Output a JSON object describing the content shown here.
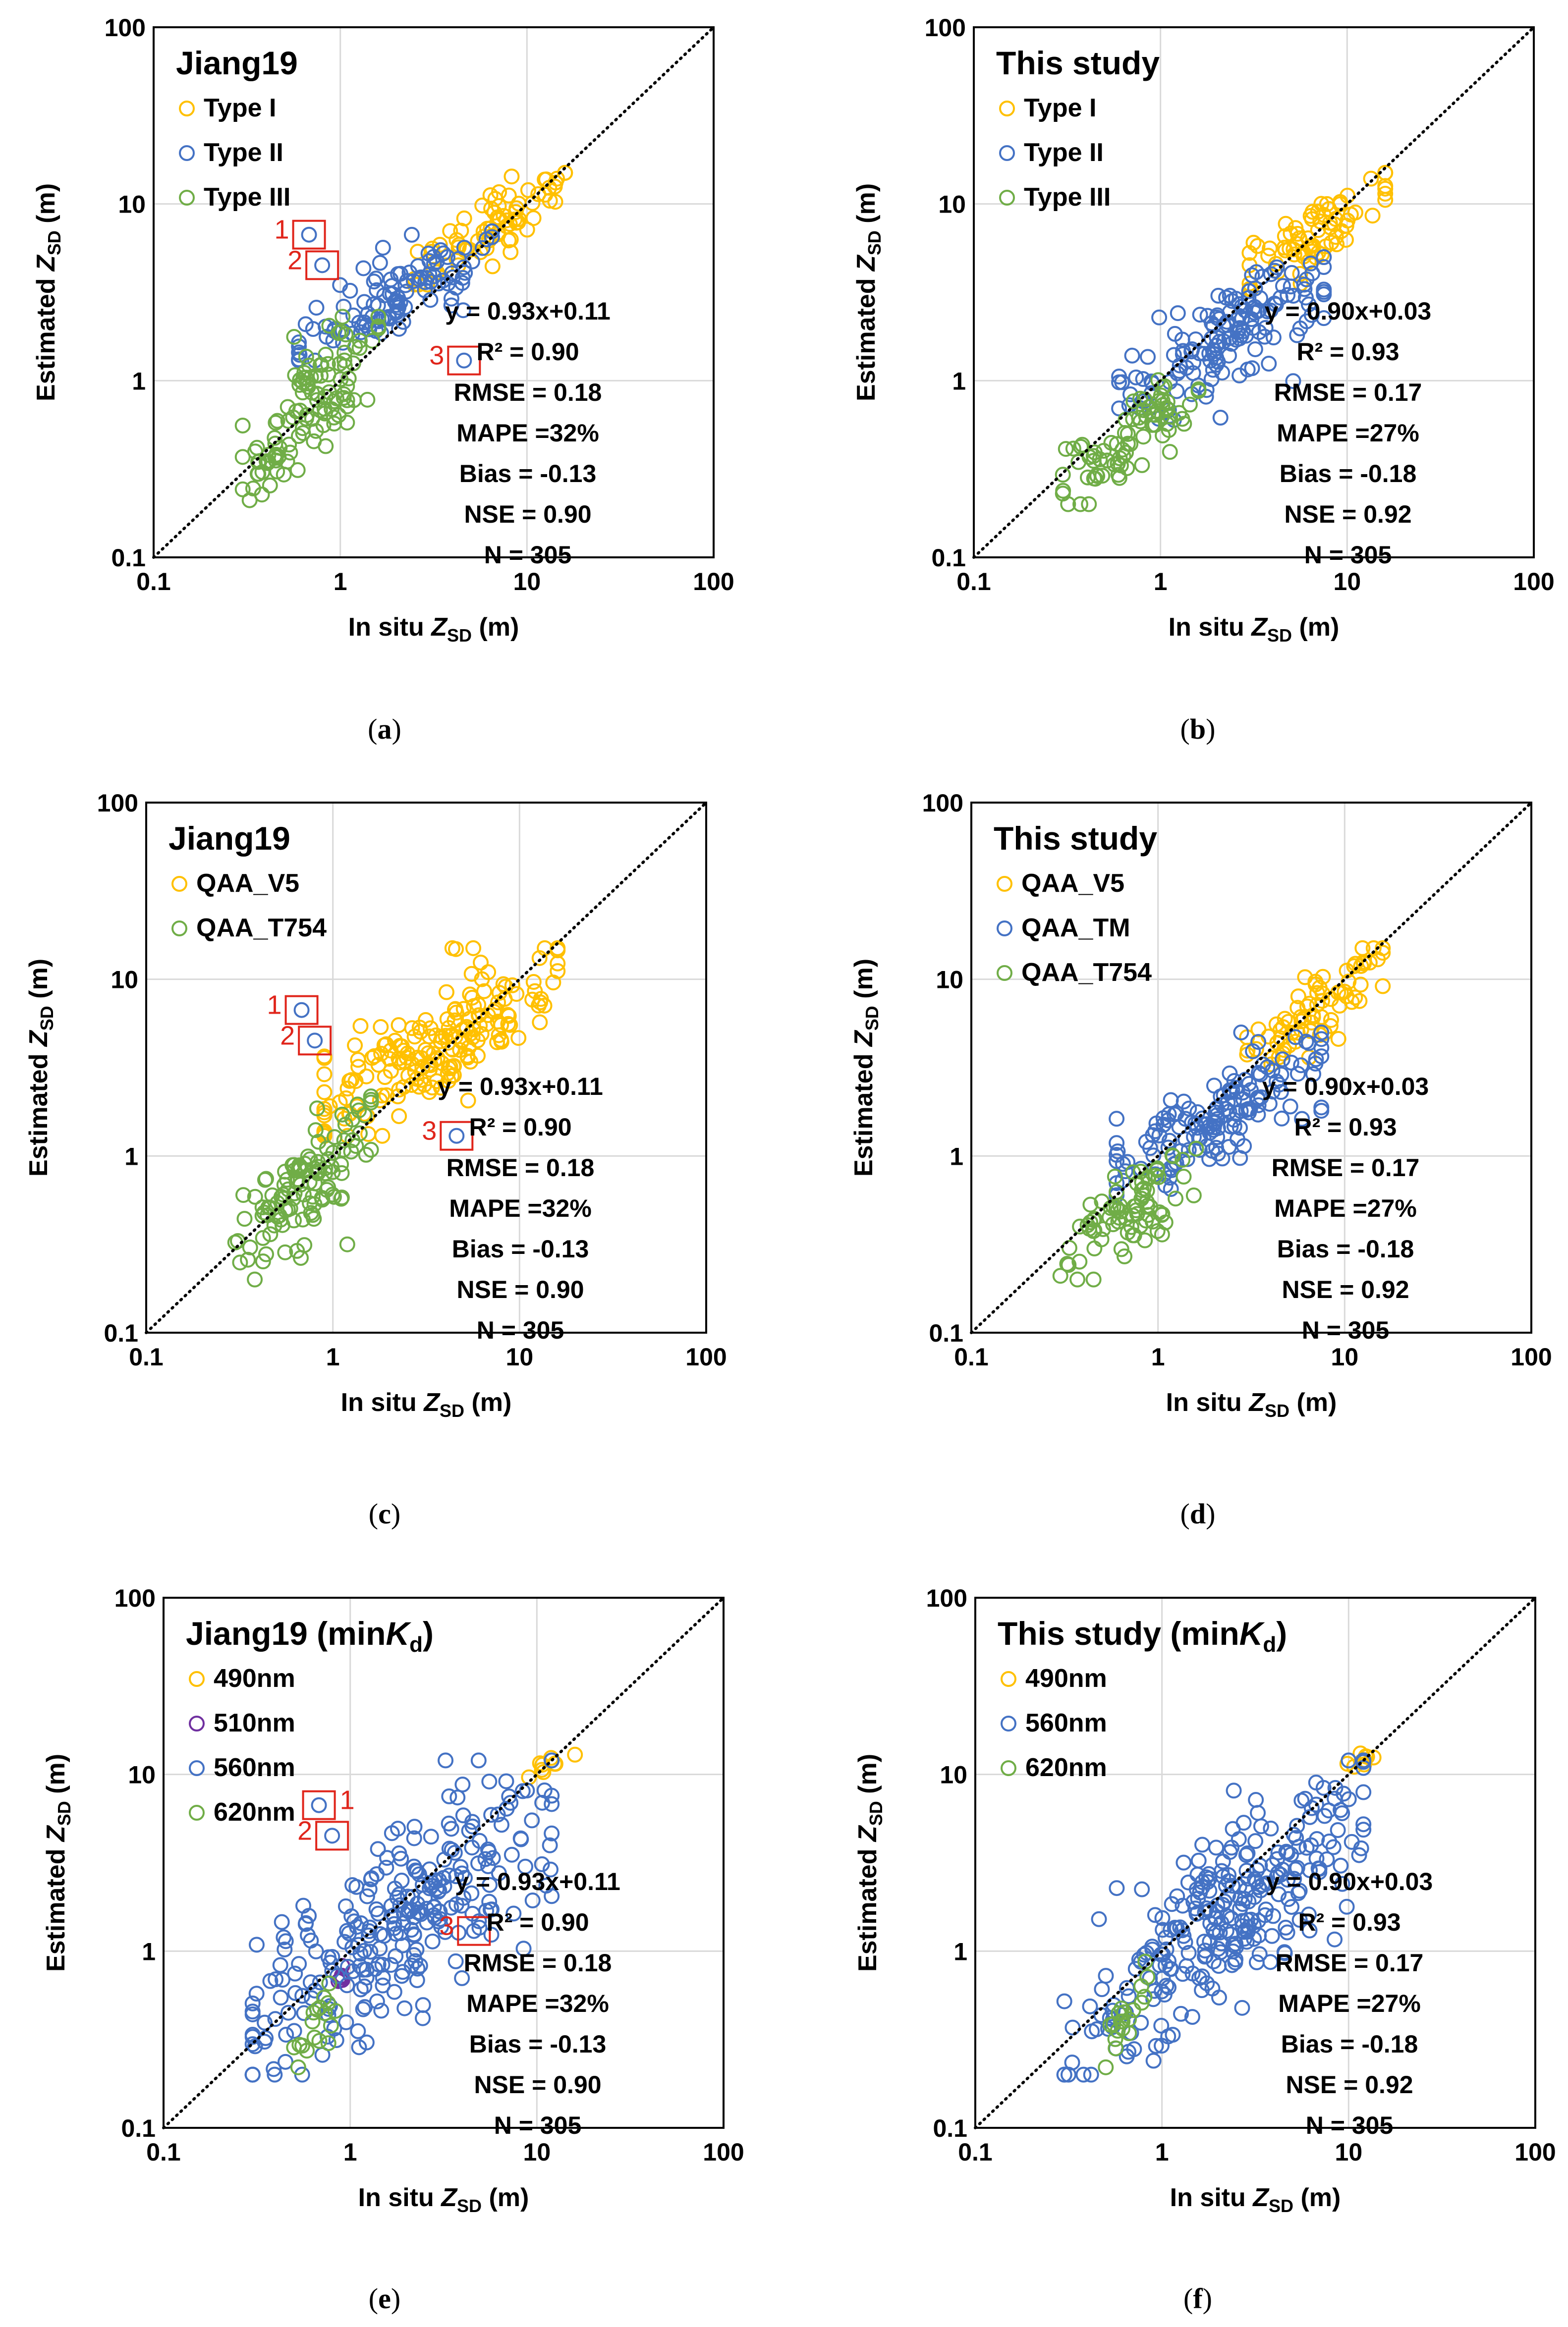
{
  "figure": {
    "colors": {
      "type1": "#FFC000",
      "type2": "#4472C4",
      "type3": "#70AD47",
      "purple": "#7030A0",
      "outlier_box": "#E0251B",
      "grid": "#D9D9D9"
    }
  },
  "chart_data": [
    {
      "type": "scatter",
      "panel_label": "a",
      "xscale": "log",
      "yscale": "log",
      "xlim": [
        0.1,
        100
      ],
      "ylim": [
        0.1,
        100
      ],
      "x_ticks": [
        "0.1",
        "1",
        "10",
        "100"
      ],
      "y_ticks": [
        "0.1",
        "1",
        "10",
        "100"
      ],
      "xlabel": {
        "pre": "In situ ",
        "var": "Z",
        "sub": "SD",
        "post": " (m)"
      },
      "ylabel": {
        "pre": "Estimated ",
        "var": "Z",
        "sub": "SD",
        "post": " (m)"
      },
      "legend_title": {
        "text": "Jiang19"
      },
      "legend_entries": [
        {
          "label": "Type I",
          "color": "#FFC000"
        },
        {
          "label": "Type II",
          "color": "#4472C4"
        },
        {
          "label": "Type III",
          "color": "#70AD47"
        }
      ],
      "stats": [
        "y = 0.93x+0.11",
        "R² = 0.90",
        "RMSE = 0.18",
        "MAPE =32%",
        "Bias = -0.13",
        "NSE = 0.90",
        "N = 305"
      ],
      "identity_line": true,
      "n_points": 305,
      "series": [
        {
          "name": "Type I",
          "color": "#FFC000",
          "x_range": [
            2.5,
            16
          ],
          "y_range": [
            3.5,
            15
          ]
        },
        {
          "name": "Type II",
          "color": "#4472C4",
          "x_range": [
            0.6,
            6.5
          ],
          "y_range": [
            1.3,
            7
          ]
        },
        {
          "name": "Type III",
          "color": "#70AD47",
          "x_range": [
            0.3,
            1.6
          ],
          "y_range": [
            0.2,
            2.3
          ]
        }
      ],
      "outliers": [
        {
          "label": "1",
          "x": 0.68,
          "y": 6.7
        },
        {
          "label": "2",
          "x": 0.8,
          "y": 4.5
        },
        {
          "label": "3",
          "x": 4.6,
          "y": 1.3
        }
      ]
    },
    {
      "type": "scatter",
      "panel_label": "b",
      "xscale": "log",
      "yscale": "log",
      "xlim": [
        0.1,
        100
      ],
      "ylim": [
        0.1,
        100
      ],
      "x_ticks": [
        "0.1",
        "1",
        "10",
        "100"
      ],
      "y_ticks": [
        "0.1",
        "1",
        "10",
        "100"
      ],
      "xlabel": {
        "pre": "In situ ",
        "var": "Z",
        "sub": "SD",
        "post": "  (m)"
      },
      "ylabel": {
        "pre": "Estimated ",
        "var": "Z",
        "sub": "SD",
        "post": " (m)"
      },
      "legend_title": {
        "text": "This study"
      },
      "legend_entries": [
        {
          "label": "Type I",
          "color": "#FFC000"
        },
        {
          "label": "Type II",
          "color": "#4472C4"
        },
        {
          "label": "Type III",
          "color": "#70AD47"
        }
      ],
      "stats": [
        "y = 0.90x+0.03",
        "R² = 0.93",
        "RMSE = 0.17",
        "MAPE =27%",
        "Bias = -0.18",
        "NSE = 0.92",
        "N = 305"
      ],
      "identity_line": true,
      "n_points": 305,
      "series": [
        {
          "name": "Type I",
          "color": "#FFC000",
          "x_range": [
            3,
            16
          ],
          "y_range": [
            3.3,
            15
          ]
        },
        {
          "name": "Type II",
          "color": "#4472C4",
          "x_range": [
            0.6,
            7.5
          ],
          "y_range": [
            0.6,
            5
          ]
        },
        {
          "name": "Type III",
          "color": "#70AD47",
          "x_range": [
            0.3,
            1.6
          ],
          "y_range": [
            0.2,
            1.1
          ]
        }
      ],
      "outliers": []
    },
    {
      "type": "scatter",
      "panel_label": "c",
      "xscale": "log",
      "yscale": "log",
      "xlim": [
        0.1,
        100
      ],
      "ylim": [
        0.1,
        100
      ],
      "x_ticks": [
        "0.1",
        "1",
        "10",
        "100"
      ],
      "y_ticks": [
        "0.1",
        "1",
        "10",
        "100"
      ],
      "xlabel": {
        "pre": "In situ ",
        "var": "Z",
        "sub": "SD",
        "post": " (m)"
      },
      "ylabel": {
        "pre": "Estimated ",
        "var": "Z",
        "sub": "SD",
        "post": " (m)"
      },
      "legend_title": {
        "text": "Jiang19"
      },
      "legend_entries": [
        {
          "label": "QAA_V5",
          "color": "#FFC000"
        },
        {
          "label": "QAA_T754",
          "color": "#70AD47"
        }
      ],
      "stats": [
        "y = 0.93x+0.11",
        "R² = 0.90",
        "RMSE = 0.18",
        "MAPE =32%",
        "Bias = -0.13",
        "NSE = 0.90",
        "N = 305"
      ],
      "identity_line": true,
      "n_points": 305,
      "series": [
        {
          "name": "QAA_V5",
          "color": "#FFC000",
          "x_range": [
            0.9,
            16
          ],
          "y_range": [
            1.3,
            15
          ]
        },
        {
          "name": "QAA_T754",
          "color": "#70AD47",
          "x_range": [
            0.3,
            1.6
          ],
          "y_range": [
            0.2,
            2.3
          ]
        }
      ],
      "outliers": [
        {
          "label": "1",
          "x": 0.68,
          "y": 6.7
        },
        {
          "label": "2",
          "x": 0.8,
          "y": 4.5
        },
        {
          "label": "3",
          "x": 4.6,
          "y": 1.3
        }
      ]
    },
    {
      "type": "scatter",
      "panel_label": "d",
      "xscale": "log",
      "yscale": "log",
      "xlim": [
        0.1,
        100
      ],
      "ylim": [
        0.1,
        100
      ],
      "x_ticks": [
        "0.1",
        "1",
        "10",
        "100"
      ],
      "y_ticks": [
        "0.1",
        "1",
        "10",
        "100"
      ],
      "xlabel": {
        "pre": "In situ ",
        "var": "Z",
        "sub": "SD",
        "post": " (m)"
      },
      "ylabel": {
        "pre": "Estimated ",
        "var": "Z",
        "sub": "SD",
        "post": " (m)"
      },
      "legend_title": {
        "text": "This study"
      },
      "legend_entries": [
        {
          "label": "QAA_V5",
          "color": "#FFC000"
        },
        {
          "label": "QAA_TM",
          "color": "#4472C4"
        },
        {
          "label": "QAA_T754",
          "color": "#70AD47"
        }
      ],
      "stats": [
        "y = 0.90x+0.03",
        "R² = 0.93",
        "RMSE = 0.17",
        "MAPE =27%",
        "Bias = -0.18",
        "NSE = 0.92",
        "N = 305"
      ],
      "identity_line": true,
      "n_points": 305,
      "series": [
        {
          "name": "QAA_V5",
          "color": "#FFC000",
          "x_range": [
            3,
            16
          ],
          "y_range": [
            3.3,
            15
          ]
        },
        {
          "name": "QAA_TM",
          "color": "#4472C4",
          "x_range": [
            0.6,
            7.5
          ],
          "y_range": [
            0.6,
            5
          ]
        },
        {
          "name": "QAA_T754",
          "color": "#70AD47",
          "x_range": [
            0.3,
            1.6
          ],
          "y_range": [
            0.2,
            1.1
          ]
        }
      ],
      "outliers": []
    },
    {
      "type": "scatter",
      "panel_label": "e",
      "xscale": "log",
      "yscale": "log",
      "xlim": [
        0.1,
        100
      ],
      "ylim": [
        0.1,
        100
      ],
      "x_ticks": [
        "0.1",
        "1",
        "10",
        "100"
      ],
      "y_ticks": [
        "0.1",
        "1",
        "10",
        "100"
      ],
      "xlabel": {
        "pre": "In situ ",
        "var": "Z",
        "sub": "SD",
        "post": " (m)"
      },
      "ylabel": {
        "pre": "Estimated ",
        "var": "Z",
        "sub": "SD",
        "post": " (m)"
      },
      "legend_title": {
        "text": "Jiang19 (min",
        "var": "K",
        "sub": "d",
        "post": ")"
      },
      "legend_entries": [
        {
          "label": "490nm",
          "color": "#FFC000"
        },
        {
          "label": "510nm",
          "color": "#7030A0"
        },
        {
          "label": "560nm",
          "color": "#4472C4"
        },
        {
          "label": "620nm",
          "color": "#70AD47"
        }
      ],
      "stats": [
        "y = 0.93x+0.11",
        "R² = 0.90",
        "RMSE = 0.18",
        "MAPE =32%",
        "Bias = -0.13",
        "NSE = 0.90",
        "N = 305"
      ],
      "identity_line": true,
      "n_points": 305,
      "series": [
        {
          "name": "490nm",
          "color": "#FFC000",
          "x_range": [
            9,
            16
          ],
          "y_range": [
            9,
            15
          ]
        },
        {
          "name": "510nm",
          "color": "#7030A0",
          "x_range": [
            0.8,
            1.0
          ],
          "y_range": [
            0.6,
            0.9
          ]
        },
        {
          "name": "560nm",
          "color": "#4472C4",
          "x_range": [
            0.3,
            12
          ],
          "y_range": [
            0.2,
            12
          ]
        },
        {
          "name": "620nm",
          "color": "#70AD47",
          "x_range": [
            0.5,
            0.9
          ],
          "y_range": [
            0.22,
            0.8
          ]
        }
      ],
      "outliers": [
        {
          "label": "1",
          "x": 0.68,
          "y": 6.7
        },
        {
          "label": "2",
          "x": 0.8,
          "y": 4.5
        },
        {
          "label": "3",
          "x": 4.6,
          "y": 1.3
        }
      ]
    },
    {
      "type": "scatter",
      "panel_label": "f",
      "xscale": "log",
      "yscale": "log",
      "xlim": [
        0.1,
        100
      ],
      "ylim": [
        0.1,
        100
      ],
      "x_ticks": [
        "0.1",
        "1",
        "10",
        "100"
      ],
      "y_ticks": [
        "0.1",
        "1",
        "10",
        "100"
      ],
      "xlabel": {
        "pre": "In situ ",
        "var": "Z",
        "sub": "SD",
        "post": " (m)"
      },
      "ylabel": {
        "pre": "Estimated ",
        "var": "Z",
        "sub": "SD",
        "post": " (m)"
      },
      "legend_title": {
        "text": "This study (min",
        "var": "K",
        "sub": "d",
        "post": ")"
      },
      "legend_entries": [
        {
          "label": "490nm",
          "color": "#FFC000"
        },
        {
          "label": "560nm",
          "color": "#4472C4"
        },
        {
          "label": "620nm",
          "color": "#70AD47"
        }
      ],
      "stats": [
        "y = 0.90x+0.03",
        "R² = 0.93",
        "RMSE = 0.17",
        "MAPE =27%",
        "Bias = -0.18",
        "NSE = 0.92",
        "N = 305"
      ],
      "identity_line": true,
      "n_points": 305,
      "series": [
        {
          "name": "490nm",
          "color": "#FFC000",
          "x_range": [
            9,
            16
          ],
          "y_range": [
            10,
            15
          ]
        },
        {
          "name": "560nm",
          "color": "#4472C4",
          "x_range": [
            0.3,
            12
          ],
          "y_range": [
            0.2,
            12
          ]
        },
        {
          "name": "620nm",
          "color": "#70AD47",
          "x_range": [
            0.5,
            0.9
          ],
          "y_range": [
            0.22,
            0.9
          ]
        }
      ],
      "outliers": []
    }
  ]
}
